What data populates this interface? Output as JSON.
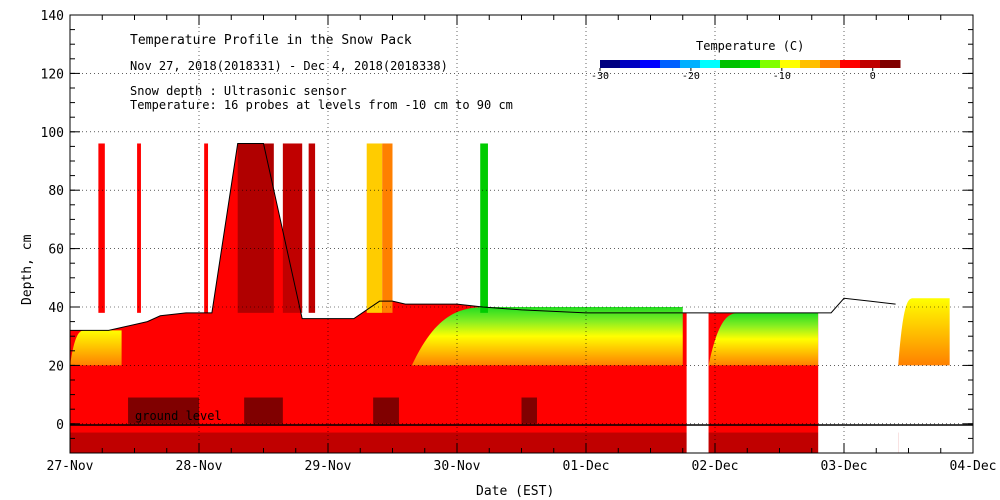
{
  "chart_data": {
    "type": "heatmap",
    "title": "Temperature Profile in the Snow Pack",
    "subtitle": "Nov 27, 2018(2018331) - Dec  4, 2018(2018338)",
    "annotations": [
      "Snow depth : Ultrasonic sensor",
      "Temperature: 16 probes at levels from -10 cm to 90 cm"
    ],
    "ground_label": "ground level",
    "xlabel": "Date (EST)",
    "ylabel": "Depth, cm",
    "x_ticks": [
      "27-Nov",
      "28-Nov",
      "29-Nov",
      "30-Nov",
      "01-Dec",
      "02-Dec",
      "03-Dec",
      "04-Dec"
    ],
    "xlim_days": [
      0,
      7
    ],
    "y_ticks": [
      0,
      20,
      40,
      60,
      80,
      100,
      120,
      140
    ],
    "ylim": [
      -10,
      140
    ],
    "grid": true,
    "colorbar": {
      "label": "Temperature (C)",
      "ticks": [
        -30,
        -20,
        -10,
        0
      ],
      "range": [
        -30,
        3
      ],
      "colors": [
        "#000080",
        "#0000c0",
        "#0000ff",
        "#0060ff",
        "#00b0ff",
        "#00ffff",
        "#00c000",
        "#00e000",
        "#80ff00",
        "#ffff00",
        "#ffc000",
        "#ff8000",
        "#ff0000",
        "#c00000",
        "#800000"
      ]
    },
    "snow_depth_series": {
      "name": "Snow depth",
      "x_days": [
        0,
        0.3,
        0.6,
        0.7,
        0.9,
        1.0,
        1.1,
        1.3,
        1.4,
        1.5,
        1.8,
        2.0,
        2.2,
        2.4,
        2.5,
        2.6,
        2.9,
        3.0,
        3.2,
        3.5,
        4.0,
        4.5,
        5.0,
        5.5,
        5.9,
        6.0,
        6.2,
        6.4
      ],
      "depth_cm": [
        32,
        32,
        35,
        37,
        38,
        38,
        38,
        96,
        96,
        96,
        36,
        36,
        36,
        42,
        42,
        41,
        41,
        41,
        40,
        39,
        38,
        38,
        38,
        38,
        38,
        43,
        42,
        41
      ]
    },
    "gaps_days": [
      [
        4.78,
        4.95
      ],
      [
        5.8,
        6.42
      ]
    ],
    "temperature_regions": [
      {
        "name": "cold-top-30nov",
        "x_days": [
          2.65,
          4.75
        ],
        "depth_cm": [
          20,
          40
        ],
        "temp_c": -8
      },
      {
        "name": "cold-top-01dec",
        "x_days": [
          4.95,
          5.8
        ],
        "depth_cm": [
          20,
          38
        ],
        "temp_c": -8
      },
      {
        "name": "cool-top-03dec",
        "x_days": [
          6.42,
          6.82
        ],
        "depth_cm": [
          20,
          43
        ],
        "temp_c": -2
      },
      {
        "name": "cool-top-27nov",
        "x_days": [
          0,
          0.4
        ],
        "depth_cm": [
          20,
          32
        ],
        "temp_c": -2
      }
    ]
  }
}
